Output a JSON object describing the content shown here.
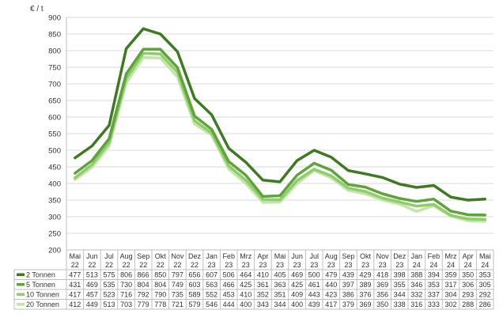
{
  "chart_data": {
    "type": "line",
    "ylabel": "€ / t",
    "ylim": [
      200,
      900
    ],
    "yticks": [
      200,
      250,
      300,
      350,
      400,
      450,
      500,
      550,
      600,
      650,
      700,
      750,
      800,
      850,
      900
    ],
    "grid": true,
    "legend": "bottom-left (data table)",
    "categories": [
      [
        "Mai",
        "22"
      ],
      [
        "Jun",
        "22"
      ],
      [
        "Jul",
        "22"
      ],
      [
        "Aug",
        "22"
      ],
      [
        "Sep",
        "22"
      ],
      [
        "Okt",
        "22"
      ],
      [
        "Nov",
        "22"
      ],
      [
        "Dez",
        "22"
      ],
      [
        "Jan",
        "23"
      ],
      [
        "Feb",
        "23"
      ],
      [
        "Mrz",
        "23"
      ],
      [
        "Apr",
        "23"
      ],
      [
        "Mai",
        "23"
      ],
      [
        "Jun",
        "23"
      ],
      [
        "Jul",
        "23"
      ],
      [
        "Aug",
        "23"
      ],
      [
        "Sep",
        "23"
      ],
      [
        "Okt",
        "23"
      ],
      [
        "Nov",
        "23"
      ],
      [
        "Dez",
        "23"
      ],
      [
        "Jan",
        "24"
      ],
      [
        "Feb",
        "24"
      ],
      [
        "Mrz",
        "24"
      ],
      [
        "Apr",
        "24"
      ],
      [
        "Mai",
        "24"
      ]
    ],
    "series": [
      {
        "name": "2 Tonnen",
        "color": "#3d7a22",
        "values": [
          477,
          513,
          575,
          806,
          866,
          850,
          797,
          656,
          607,
          506,
          464,
          410,
          405,
          469,
          500,
          479,
          439,
          429,
          418,
          398,
          388,
          394,
          359,
          350,
          353
        ]
      },
      {
        "name": "5 Tonnen",
        "color": "#5ea43a",
        "values": [
          431,
          469,
          535,
          730,
          804,
          804,
          749,
          603,
          563,
          466,
          425,
          361,
          363,
          425,
          461,
          440,
          397,
          389,
          369,
          355,
          346,
          353,
          317,
          306,
          305
        ]
      },
      {
        "name": "10 Tonnen",
        "color": "#8fcc6a",
        "values": [
          417,
          457,
          523,
          716,
          792,
          790,
          735,
          589,
          552,
          453,
          410,
          352,
          351,
          409,
          443,
          423,
          386,
          376,
          356,
          344,
          332,
          337,
          304,
          293,
          292
        ]
      },
      {
        "name": "20 Tonnen",
        "color": "#c2e6a8",
        "values": [
          412,
          449,
          513,
          703,
          779,
          778,
          721,
          579,
          546,
          444,
          400,
          343,
          344,
          400,
          439,
          417,
          379,
          369,
          350,
          338,
          316,
          333,
          302,
          288,
          286
        ]
      }
    ]
  }
}
